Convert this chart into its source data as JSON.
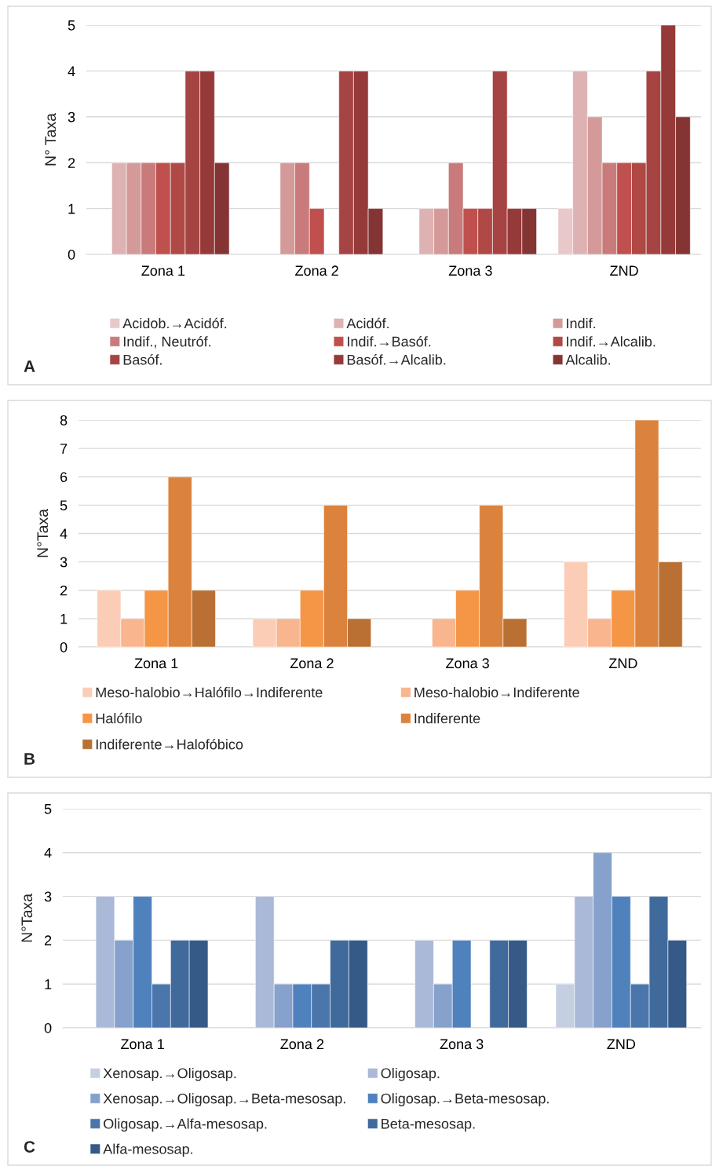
{
  "chart_data": [
    {
      "type": "bar",
      "ylabel": "N° Taxa",
      "categories": [
        "Zona 1",
        "Zona 2",
        "Zona 3",
        "ZND"
      ],
      "ylim": [
        0,
        5
      ],
      "yticks": [
        0,
        1,
        2,
        3,
        4,
        5
      ],
      "grid": "y",
      "legend": "bottom",
      "annotations": [
        "A"
      ],
      "series": [
        {
          "name": "Acidob.→Acidóf.",
          "color": "#e8c8c8",
          "values": [
            null,
            null,
            null,
            1
          ]
        },
        {
          "name": "Acidóf.",
          "color": "#deb2b2",
          "values": [
            2,
            null,
            1,
            4
          ]
        },
        {
          "name": "Indif.",
          "color": "#d49a9a",
          "values": [
            2,
            2,
            1,
            3
          ]
        },
        {
          "name": "Indif., Neutróf.",
          "color": "#c97b7b",
          "values": [
            2,
            2,
            2,
            2
          ]
        },
        {
          "name": "Indif.→Basóf.",
          "color": "#c0504d",
          "values": [
            2,
            1,
            1,
            2
          ]
        },
        {
          "name": "Indif.→Alcalib.",
          "color": "#b04846",
          "values": [
            2,
            null,
            1,
            2
          ]
        },
        {
          "name": "Basóf.",
          "color": "#a54442",
          "values": [
            4,
            4,
            4,
            4
          ]
        },
        {
          "name": "Basóf.→Alcalib.",
          "color": "#953a39",
          "values": [
            4,
            4,
            1,
            5
          ]
        },
        {
          "name": "Alcalib.",
          "color": "#853434",
          "values": [
            2,
            1,
            1,
            3
          ]
        }
      ]
    },
    {
      "type": "bar",
      "ylabel": "N°Taxa",
      "categories": [
        "Zona 1",
        "Zona 2",
        "Zona 3",
        "ZND"
      ],
      "ylim": [
        0,
        8
      ],
      "yticks": [
        0,
        1,
        2,
        3,
        4,
        5,
        6,
        7,
        8
      ],
      "grid": "y",
      "legend": "bottom",
      "annotations": [
        "B"
      ],
      "series": [
        {
          "name": "Meso-halobio→Halófilo→Indiferente",
          "color": "#fbcdb6",
          "values": [
            2,
            1,
            null,
            3
          ]
        },
        {
          "name": "Meso-halobio→Indiferente",
          "color": "#f8b58e",
          "values": [
            1,
            1,
            1,
            1
          ]
        },
        {
          "name": "Halófilo",
          "color": "#f59647",
          "values": [
            2,
            2,
            2,
            2
          ]
        },
        {
          "name": "Indiferente",
          "color": "#db823d",
          "values": [
            6,
            5,
            5,
            8
          ]
        },
        {
          "name": "Indiferente→Halofóbico",
          "color": "#b97032",
          "values": [
            2,
            1,
            1,
            3
          ]
        }
      ]
    },
    {
      "type": "bar",
      "ylabel": "N°Taxa",
      "categories": [
        "Zona 1",
        "Zona 2",
        "Zona 3",
        "ZND"
      ],
      "ylim": [
        0,
        5
      ],
      "yticks": [
        0,
        1,
        2,
        3,
        4,
        5
      ],
      "grid": "y",
      "legend": "bottom",
      "annotations": [
        "C"
      ],
      "series": [
        {
          "name": "Xenosap.→Oligosap.",
          "color": "#c4cfe2",
          "values": [
            null,
            null,
            null,
            1
          ]
        },
        {
          "name": "Oligosap.",
          "color": "#aab9d7",
          "values": [
            3,
            3,
            2,
            3
          ]
        },
        {
          "name": "Xenosap.→Oligosap.→Beta-mesosap.",
          "color": "#86a1cb",
          "values": [
            2,
            1,
            1,
            4
          ]
        },
        {
          "name": "Oligosap.→Beta-mesosap.",
          "color": "#4f81bd",
          "values": [
            3,
            1,
            2,
            3
          ]
        },
        {
          "name": "Oligosap.→Alfa-mesosap.",
          "color": "#4a76ac",
          "values": [
            1,
            1,
            null,
            1
          ]
        },
        {
          "name": "Beta-mesosap.",
          "color": "#406a9c",
          "values": [
            2,
            2,
            2,
            3
          ]
        },
        {
          "name": "Alfa-mesosap.",
          "color": "#355a88",
          "values": [
            2,
            2,
            2,
            2
          ]
        }
      ]
    }
  ]
}
